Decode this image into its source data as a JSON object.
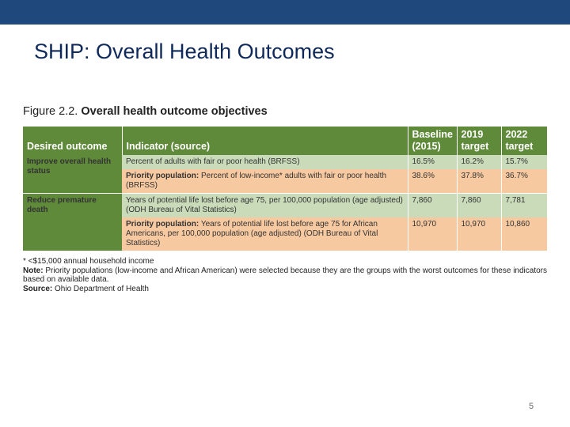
{
  "slide": {
    "title": "SHIP: Overall Health Outcomes",
    "page_number": "5"
  },
  "figure": {
    "label": "Figure 2.2.",
    "title": "Overall health outcome objectives"
  },
  "table": {
    "headers": {
      "outcome": "Desired outcome",
      "indicator": "Indicator (source)",
      "baseline": "Baseline (2015)",
      "target_2019": "2019 target",
      "target_2022": "2022 target"
    },
    "rows": [
      {
        "outcome": "Improve overall health status",
        "priority_label": "",
        "indicator": "Percent of adults with fair or poor health (BRFSS)",
        "baseline": "16.5%",
        "target_2019": "16.2%",
        "target_2022": "15.7%"
      },
      {
        "outcome": "",
        "priority_label": "Priority population:",
        "indicator": " Percent of low-income* adults with fair or poor health (BRFSS)",
        "baseline": "38.6%",
        "target_2019": "37.8%",
        "target_2022": "36.7%"
      },
      {
        "outcome": "Reduce premature death",
        "priority_label": "",
        "indicator": "Years of potential life lost before age 75, per 100,000 population (age adjusted) (ODH Bureau of Vital Statistics)",
        "baseline": "7,860",
        "target_2019": "7,860",
        "target_2022": "7,781"
      },
      {
        "outcome": "",
        "priority_label": "Priority population:",
        "indicator": " Years of potential life lost before age 75 for African Americans, per 100,000 population (age adjusted) (ODH Bureau of Vital Statistics)",
        "baseline": "10,970",
        "target_2019": "10,970",
        "target_2022": "10,860"
      }
    ]
  },
  "notes": {
    "footnote": "* <$15,000 annual household income",
    "note_label": "Note:",
    "note_text": " Priority populations (low-income and African American) were selected because they are the groups with the worst outcomes for these indicators based on available data.",
    "source_label": "Source:",
    "source_text": " Ohio Department of Health"
  },
  "colors": {
    "top_bar": "#1f497d",
    "header_green": "#5f8a3a",
    "row_green": "#c9dbb9",
    "row_peach": "#f7c9a0"
  }
}
